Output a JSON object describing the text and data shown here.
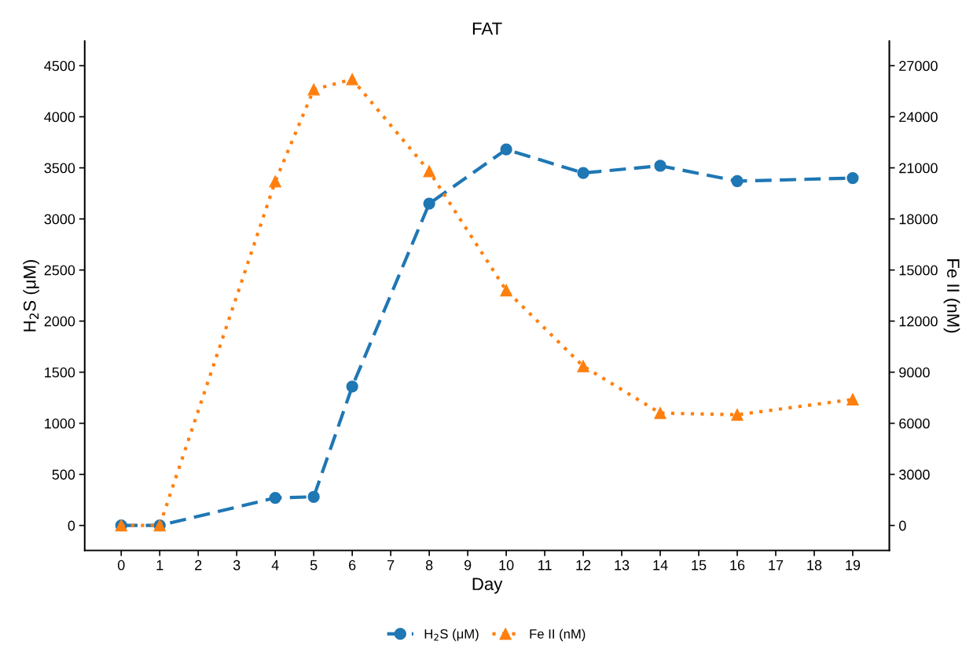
{
  "chart_data": {
    "type": "line",
    "title": "FAT",
    "xlabel": "Day",
    "ylabel": "H$_{2}$S (μM)",
    "y2label": "Fe II (nM)",
    "x": [
      0,
      1,
      4,
      5,
      6,
      8,
      10,
      12,
      14,
      16,
      19
    ],
    "series": [
      {
        "name": "H$_{2}$S (μM)",
        "color": "#1f77b4",
        "marker": "circle",
        "line_style": "dashed",
        "values": [
          0,
          0,
          270,
          280,
          1360,
          3150,
          3680,
          3450,
          3520,
          3370,
          3400
        ]
      },
      {
        "name": "Fe II (nM)",
        "color": "#ff7f0e",
        "marker": "triangle",
        "line_style": "dotted",
        "axis": "y2",
        "values": [
          0,
          0,
          20200,
          25600,
          26200,
          20800,
          13800,
          9350,
          6600,
          6500,
          7400
        ]
      }
    ],
    "xlim": [
      -0.95,
      19.95
    ],
    "xticks": [
      0,
      1,
      2,
      3,
      4,
      5,
      6,
      7,
      8,
      9,
      10,
      11,
      12,
      13,
      14,
      15,
      16,
      17,
      18,
      19
    ],
    "ylim": [
      -245,
      4740
    ],
    "yticks": [
      0,
      500,
      1000,
      1500,
      2000,
      2500,
      3000,
      3500,
      4000,
      4500
    ],
    "y2lim": [
      -1470,
      28440
    ],
    "y2ticks": [
      0,
      3000,
      6000,
      9000,
      12000,
      15000,
      18000,
      21000,
      24000,
      27000
    ],
    "grid": false,
    "legend": "bottom"
  }
}
